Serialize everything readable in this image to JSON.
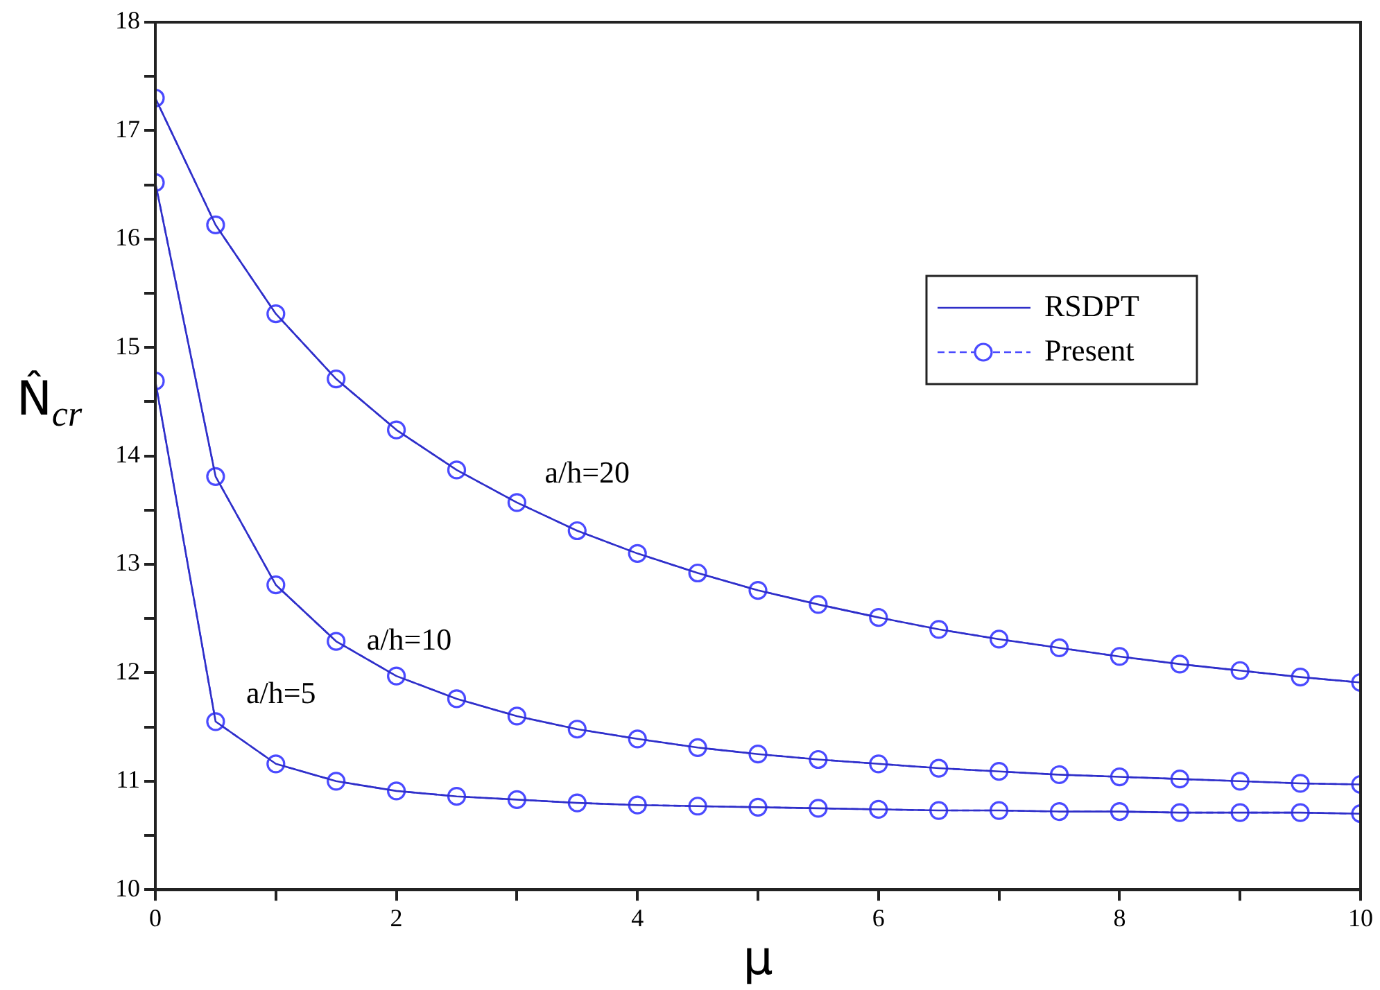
{
  "chart_data": {
    "type": "line",
    "xlabel": "μ",
    "ylabel": "N̂$_{cr}$",
    "x": [
      0,
      0.5,
      1,
      1.5,
      2,
      2.5,
      3,
      3.5,
      4,
      4.5,
      5,
      5.5,
      6,
      6.5,
      7,
      7.5,
      8,
      8.5,
      9,
      9.5,
      10
    ],
    "series": [
      {
        "name": "RSDPT",
        "color": "#2f2fc8",
        "marker": "none",
        "line_style": "solid",
        "values": [
          17.3,
          16.13,
          15.31,
          14.71,
          14.24,
          13.87,
          13.57,
          13.31,
          13.1,
          12.92,
          12.76,
          12.63,
          12.51,
          12.4,
          12.31,
          12.23,
          12.15,
          12.08,
          12.02,
          11.96,
          11.91
        ]
      },
      {
        "color": "#2f2fc8",
        "marker": "none",
        "line_style": "solid",
        "values": [
          16.52,
          13.81,
          12.81,
          12.29,
          11.97,
          11.76,
          11.6,
          11.48,
          11.39,
          11.31,
          11.25,
          11.2,
          11.16,
          11.12,
          11.09,
          11.06,
          11.04,
          11.02,
          11.0,
          10.98,
          10.97
        ]
      },
      {
        "color": "#2f2fc8",
        "marker": "none",
        "line_style": "solid",
        "values": [
          14.69,
          11.55,
          11.16,
          11.0,
          10.91,
          10.86,
          10.83,
          10.8,
          10.78,
          10.77,
          10.76,
          10.75,
          10.74,
          10.73,
          10.73,
          10.72,
          10.72,
          10.71,
          10.71,
          10.71,
          10.7
        ]
      },
      {
        "name": "Present",
        "color": "#4a4aff",
        "marker": "circle",
        "line_style": "dashed",
        "values": [
          17.3,
          16.13,
          15.31,
          14.71,
          14.24,
          13.87,
          13.57,
          13.31,
          13.1,
          12.92,
          12.76,
          12.63,
          12.51,
          12.4,
          12.31,
          12.23,
          12.15,
          12.08,
          12.02,
          11.96,
          11.91
        ]
      },
      {
        "color": "#4a4aff",
        "marker": "circle",
        "line_style": "dashed",
        "values": [
          16.52,
          13.81,
          12.81,
          12.29,
          11.97,
          11.76,
          11.6,
          11.48,
          11.39,
          11.31,
          11.25,
          11.2,
          11.16,
          11.12,
          11.09,
          11.06,
          11.04,
          11.02,
          11.0,
          10.98,
          10.97
        ]
      },
      {
        "color": "#4a4aff",
        "marker": "circle",
        "line_style": "dashed",
        "values": [
          14.69,
          11.55,
          11.16,
          11.0,
          10.91,
          10.86,
          10.83,
          10.8,
          10.78,
          10.77,
          10.76,
          10.75,
          10.74,
          10.73,
          10.73,
          10.72,
          10.72,
          10.71,
          10.71,
          10.71,
          10.7
        ]
      }
    ],
    "xlim": [
      0,
      10
    ],
    "xticks": [
      0,
      {
        "value": 1,
        "label": null
      },
      2,
      {
        "value": 3,
        "label": null
      },
      4,
      {
        "value": 5,
        "label": null
      },
      6,
      {
        "value": 7,
        "label": null
      },
      8,
      {
        "value": 9,
        "label": null
      },
      10
    ],
    "ylim": [
      10,
      18
    ],
    "yticks": [
      10,
      {
        "value": 10.5,
        "label": null
      },
      11,
      {
        "value": 11.5,
        "label": null
      },
      12,
      {
        "value": 12.5,
        "label": null
      },
      13,
      {
        "value": 13.5,
        "label": null
      },
      14,
      {
        "value": 14.5,
        "label": null
      },
      15,
      {
        "value": 15.5,
        "label": null
      },
      16,
      {
        "value": 16.5,
        "label": null
      },
      17,
      {
        "value": 17.5,
        "label": null
      },
      18
    ],
    "grid": false,
    "legend": "top right",
    "annotations": [
      "a/h=20",
      "a/h=10",
      "a/h=5"
    ]
  }
}
